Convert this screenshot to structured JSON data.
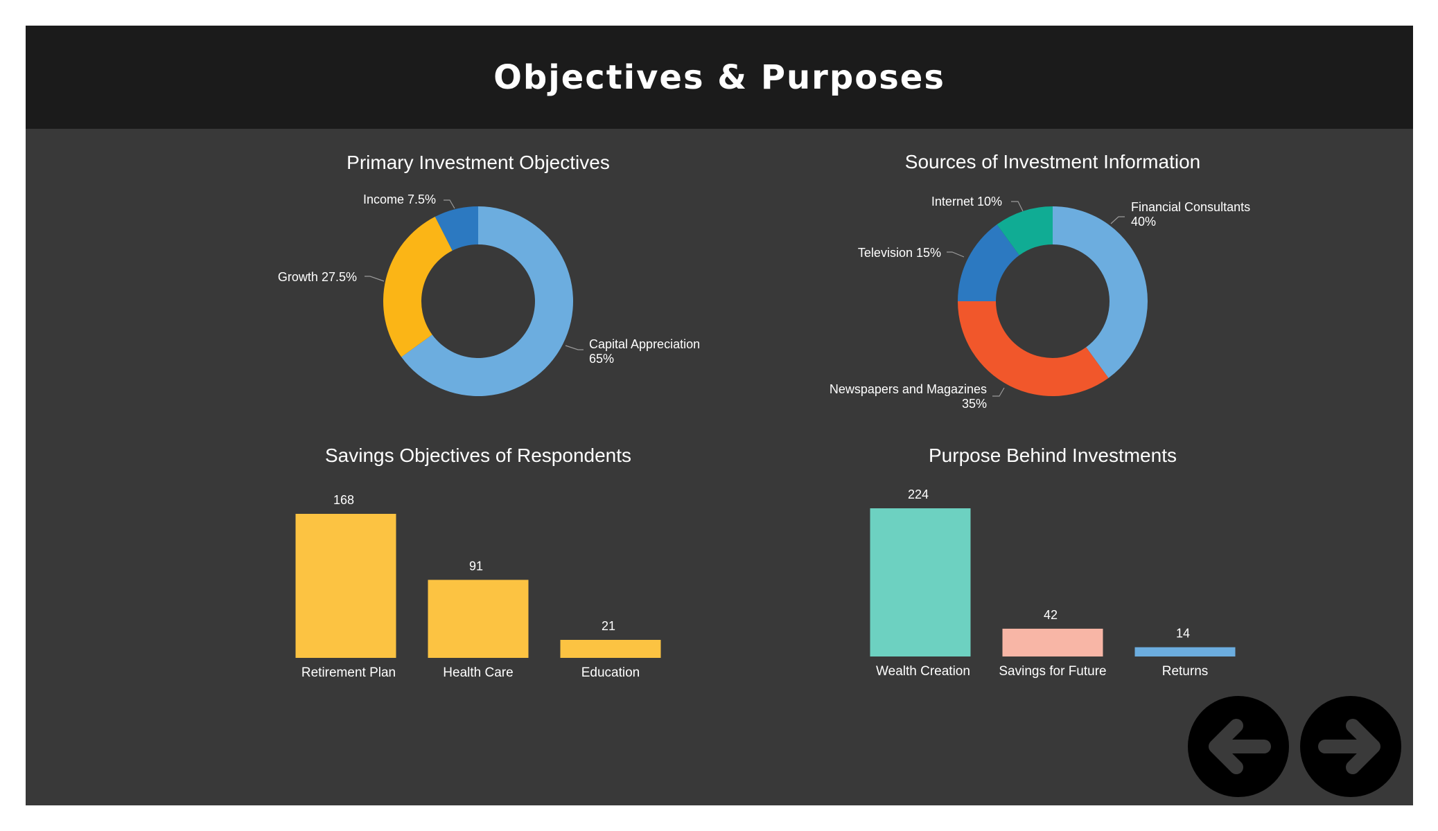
{
  "slide": {
    "title": "Objectives & Purposes"
  },
  "colors": {
    "background": "#393939",
    "header": "#1b1b1b",
    "text": "#ffffff",
    "leader": "#9a9a9a"
  },
  "navigation": {
    "prev_icon": "arrow-left-icon",
    "next_icon": "arrow-right-icon"
  },
  "chart_data": [
    {
      "id": "primary-investment-objectives",
      "type": "pie",
      "donut": true,
      "title": "Primary Investment Objectives",
      "slices": [
        {
          "label": "Capital Appreciation",
          "value": 65,
          "display": "65%",
          "color": "#6caddf"
        },
        {
          "label": "Growth",
          "value": 27.5,
          "display": "27.5%",
          "color": "#fbb516"
        },
        {
          "label": "Income",
          "value": 7.5,
          "display": "7.5%",
          "color": "#2c79c1"
        }
      ]
    },
    {
      "id": "sources-of-investment-information",
      "type": "pie",
      "donut": true,
      "title": "Sources of Investment Information",
      "slices": [
        {
          "label": "Financial Consultants",
          "value": 40,
          "display": "40%",
          "color": "#6caddf"
        },
        {
          "label": "Newspapers and Magazines",
          "value": 35,
          "display": "35%",
          "color": "#f1572b"
        },
        {
          "label": "Television",
          "value": 15,
          "display": "15%",
          "color": "#2c79c1"
        },
        {
          "label": "Internet",
          "value": 10,
          "display": "10%",
          "color": "#10ac94"
        }
      ]
    },
    {
      "id": "savings-objectives-of-respondents",
      "type": "bar",
      "title": "Savings Objectives of Respondents",
      "categories": [
        "Retirement Plan",
        "Health Care",
        "Education"
      ],
      "values": [
        168,
        91,
        21
      ],
      "colors": [
        "#fcc342",
        "#fcc342",
        "#fcc342"
      ]
    },
    {
      "id": "purpose-behind-investments",
      "type": "bar",
      "title": "Purpose Behind Investments",
      "categories": [
        "Wealth Creation",
        "Savings for Future",
        "Returns"
      ],
      "values": [
        224,
        42,
        14
      ],
      "colors": [
        "#6dd1c1",
        "#f8b6a6",
        "#6caddf"
      ]
    }
  ]
}
